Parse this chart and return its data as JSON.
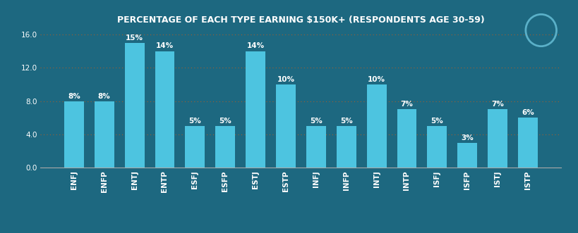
{
  "title": "PERCENTAGE OF EACH TYPE EARNING $150K+ (RESPONDENTS AGE 30-59)",
  "categories": [
    "ENFJ",
    "ENFP",
    "ENTJ",
    "ENTP",
    "ESFJ",
    "ESFP",
    "ESTJ",
    "ESTP",
    "INFJ",
    "INFP",
    "INTJ",
    "INTP",
    "ISFJ",
    "ISFP",
    "ISTJ",
    "ISTP"
  ],
  "values": [
    8,
    8,
    15,
    14,
    5,
    5,
    14,
    10,
    5,
    5,
    10,
    7,
    5,
    3,
    7,
    6
  ],
  "bar_color": "#4dc4e0",
  "background_color": "#1d6880",
  "plot_bg_color": "#1d6880",
  "title_color": "#ffffff",
  "tick_label_color": "#ffffff",
  "bar_label_color": "#ffffff",
  "grid_color": "#a06030",
  "ylim": [
    0,
    16.5
  ],
  "yticks": [
    0.0,
    4.0,
    8.0,
    12.0,
    16.0
  ],
  "title_fontsize": 9,
  "tick_fontsize": 7.5,
  "bar_label_fontsize": 7.5,
  "logo_color": "#5ab0c8"
}
